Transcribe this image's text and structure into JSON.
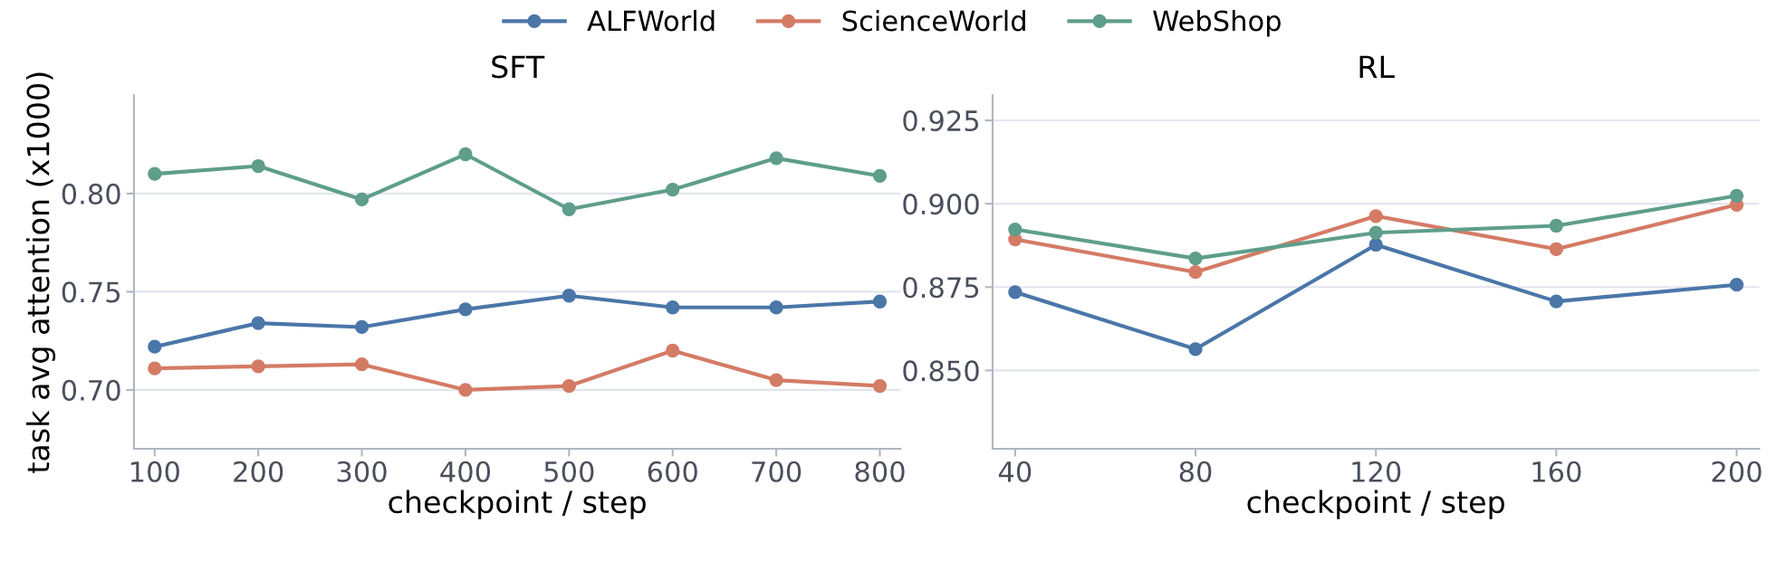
{
  "chart_data": [
    {
      "type": "line",
      "title": "SFT",
      "xlabel": "checkpoint / step",
      "ylabel": "task avg attention (x1000)",
      "legend": "top",
      "grid": "y",
      "marker": "circle",
      "line_style": "solid",
      "x": [
        100,
        200,
        300,
        400,
        500,
        600,
        700,
        800
      ],
      "xlim": [
        80,
        820
      ],
      "xticks": [
        100,
        200,
        300,
        400,
        500,
        600,
        700,
        800
      ],
      "ylim": [
        0.67,
        0.85
      ],
      "yticks": [
        {
          "value": 0.7,
          "label": "0.70"
        },
        {
          "value": 0.75,
          "label": "0.75"
        },
        {
          "value": 0.8,
          "label": "0.80"
        }
      ],
      "series": [
        {
          "name": "ALFWorld",
          "color": "#4a76a8",
          "values": [
            0.722,
            0.734,
            0.732,
            0.741,
            0.748,
            0.742,
            0.742,
            0.745
          ]
        },
        {
          "name": "ScienceWorld",
          "color": "#d47b65",
          "values": [
            0.711,
            0.712,
            0.713,
            0.7,
            0.702,
            0.72,
            0.705,
            0.702
          ]
        },
        {
          "name": "WebShop",
          "color": "#5e9e8a",
          "values": [
            0.81,
            0.814,
            0.797,
            0.82,
            0.792,
            0.802,
            0.818,
            0.809
          ]
        }
      ]
    },
    {
      "type": "line",
      "title": "RL",
      "xlabel": "checkpoint / step",
      "grid": "y",
      "marker": "circle",
      "line_style": "solid",
      "x": [
        40,
        80,
        120,
        160,
        200
      ],
      "xlim": [
        35,
        205
      ],
      "xticks": [
        40,
        80,
        120,
        160,
        200
      ],
      "ylim": [
        0.8265,
        0.9325
      ],
      "yticks": [
        {
          "value": 0.85,
          "label": "0.850"
        },
        {
          "value": 0.875,
          "label": "0.875"
        },
        {
          "value": 0.9,
          "label": "0.900"
        },
        {
          "value": 0.925,
          "label": "0.925"
        }
      ],
      "series": [
        {
          "color": "#4a76a8",
          "values": [
            0.8735,
            0.8564,
            0.8877,
            0.8707,
            0.8757
          ]
        },
        {
          "color": "#d47b65",
          "values": [
            0.8893,
            0.8795,
            0.8963,
            0.8864,
            0.8997
          ]
        },
        {
          "color": "#5e9e8a",
          "values": [
            0.8923,
            0.8836,
            0.8913,
            0.8934,
            0.9024
          ]
        }
      ]
    }
  ]
}
